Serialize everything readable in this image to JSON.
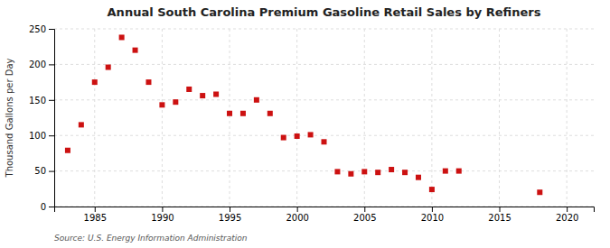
{
  "chart_data": {
    "type": "scatter",
    "title": "Annual South Carolina Premium Gasoline Retail Sales by Refiners",
    "ylabel": "Thousand Gallons per Day",
    "source": "Source: U.S. Energy Information Administration",
    "x": [
      1983,
      1984,
      1985,
      1986,
      1987,
      1988,
      1989,
      1990,
      1991,
      1992,
      1993,
      1994,
      1995,
      1996,
      1997,
      1998,
      1999,
      2000,
      2001,
      2002,
      2003,
      2004,
      2005,
      2006,
      2007,
      2008,
      2009,
      2010,
      2011,
      2012,
      2018
    ],
    "values": [
      79,
      115,
      175,
      196,
      238,
      220,
      175,
      143,
      147,
      165,
      156,
      158,
      131,
      131,
      150,
      131,
      97,
      99,
      101,
      91,
      49,
      46,
      49,
      48,
      52,
      48,
      41,
      24,
      50,
      50,
      20
    ],
    "color": "#cc1111",
    "marker": "square",
    "xlim": [
      1982,
      2022
    ],
    "ylim": [
      0,
      250
    ],
    "xticks": [
      1985,
      1990,
      1995,
      2000,
      2005,
      2010,
      2015,
      2020
    ],
    "yticks": [
      0,
      50,
      100,
      150,
      200,
      250
    ],
    "grid": true
  }
}
